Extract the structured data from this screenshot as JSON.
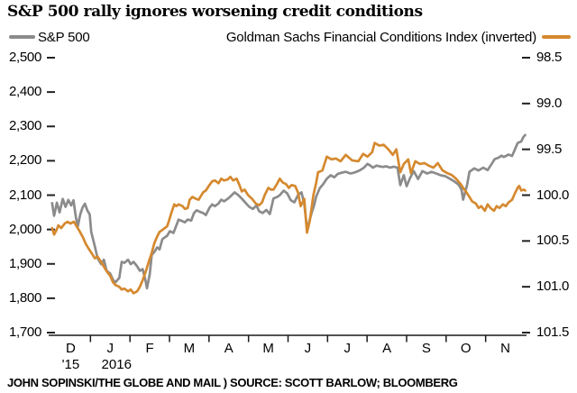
{
  "title": "S&P 500 rally ignores worsening credit conditions",
  "legend": {
    "sp500_label": "S&P 500",
    "gsfci_label": "Goldman Sachs Financial Conditions Index (inverted)"
  },
  "footer": "JOHN SOPINSKI/THE GLOBE AND MAIL ) SOURCE: SCOTT BARLOW; BLOOMBERG",
  "colors": {
    "sp500": "#8b8b8b",
    "gsfci": "#d5892f",
    "text": "#000000",
    "axis": "#1a1a1a"
  },
  "chart_data": {
    "type": "line",
    "title": "S&P 500 rally ignores worsening credit conditions",
    "grid": false,
    "legend_position": "top",
    "x_axis": {
      "unit": "months from Dec 1 2015",
      "month_labels": [
        "D",
        "J",
        "F",
        "M",
        "A",
        "M",
        "J",
        "J",
        "A",
        "S",
        "O",
        "N"
      ],
      "year_labels": [
        {
          "text": "'15",
          "month_index": 0
        },
        {
          "text": "2016",
          "month_index": 1
        }
      ]
    },
    "left_axis": {
      "series": "S&P 500",
      "tick_labels": [
        "2,500",
        "2,400",
        "2,300",
        "2,200",
        "2,100",
        "2,000",
        "1,900",
        "1,800",
        "1,700"
      ],
      "min": 1700,
      "max": 2500,
      "step": 100
    },
    "right_axis": {
      "series": "Goldman Sachs Financial Conditions Index",
      "tick_labels": [
        "98.5",
        "99.0",
        "99.5",
        "100.0",
        "100.5",
        "101.0",
        "101.5"
      ],
      "min": 98.5,
      "max": 101.5,
      "step": 0.5,
      "inverted": true
    },
    "series": [
      {
        "name": "S&P 500",
        "axis": "left",
        "color": "#8b8b8b",
        "points": [
          [
            0.03,
            2077
          ],
          [
            0.08,
            2040
          ],
          [
            0.15,
            2078
          ],
          [
            0.22,
            2050
          ],
          [
            0.3,
            2089
          ],
          [
            0.37,
            2066
          ],
          [
            0.44,
            2086
          ],
          [
            0.51,
            2070
          ],
          [
            0.57,
            2085
          ],
          [
            0.63,
            2037
          ],
          [
            0.68,
            2009
          ],
          [
            0.74,
            2043
          ],
          [
            0.8,
            2064
          ],
          [
            0.86,
            2075
          ],
          [
            0.92,
            2056
          ],
          [
            0.98,
            2044
          ],
          [
            1.02,
            1993
          ],
          [
            1.11,
            1951
          ],
          [
            1.18,
            1917
          ],
          [
            1.27,
            1899
          ],
          [
            1.34,
            1912
          ],
          [
            1.41,
            1880
          ],
          [
            1.5,
            1872
          ],
          [
            1.57,
            1854
          ],
          [
            1.63,
            1846
          ],
          [
            1.73,
            1859
          ],
          [
            1.79,
            1906
          ],
          [
            1.86,
            1903
          ],
          [
            1.95,
            1912
          ],
          [
            2.02,
            1899
          ],
          [
            2.09,
            1906
          ],
          [
            2.18,
            1893
          ],
          [
            2.25,
            1880
          ],
          [
            2.32,
            1885
          ],
          [
            2.39,
            1853
          ],
          [
            2.43,
            1829
          ],
          [
            2.5,
            1870
          ],
          [
            2.55,
            1926
          ],
          [
            2.62,
            1935
          ],
          [
            2.69,
            1948
          ],
          [
            2.75,
            1942
          ],
          [
            2.82,
            1972
          ],
          [
            2.94,
            1982
          ],
          [
            3.01,
            1995
          ],
          [
            3.1,
            1990
          ],
          [
            3.17,
            2011
          ],
          [
            3.23,
            2029
          ],
          [
            3.33,
            2024
          ],
          [
            3.39,
            2021
          ],
          [
            3.46,
            2029
          ],
          [
            3.55,
            2026
          ],
          [
            3.62,
            2048
          ],
          [
            3.69,
            2056
          ],
          [
            3.78,
            2051
          ],
          [
            3.85,
            2048
          ],
          [
            3.92,
            2042
          ],
          [
            4.01,
            2063
          ],
          [
            4.08,
            2073
          ],
          [
            4.15,
            2068
          ],
          [
            4.24,
            2076
          ],
          [
            4.31,
            2087
          ],
          [
            4.38,
            2082
          ],
          [
            4.47,
            2089
          ],
          [
            4.54,
            2096
          ],
          [
            4.65,
            2108
          ],
          [
            4.74,
            2100
          ],
          [
            4.83,
            2090
          ],
          [
            4.93,
            2077
          ],
          [
            5.02,
            2066
          ],
          [
            5.11,
            2060
          ],
          [
            5.2,
            2070
          ],
          [
            5.27,
            2053
          ],
          [
            5.36,
            2048
          ],
          [
            5.45,
            2057
          ],
          [
            5.54,
            2045
          ],
          [
            5.63,
            2090
          ],
          [
            5.73,
            2095
          ],
          [
            5.79,
            2100
          ],
          [
            5.89,
            2113
          ],
          [
            5.98,
            2105
          ],
          [
            6.07,
            2085
          ],
          [
            6.16,
            2079
          ],
          [
            6.25,
            2100
          ],
          [
            6.34,
            2108
          ],
          [
            6.41,
            2075
          ],
          [
            6.48,
            2001
          ],
          [
            6.53,
            2020
          ],
          [
            6.6,
            2050
          ],
          [
            6.66,
            2070
          ],
          [
            6.71,
            2095
          ],
          [
            6.8,
            2120
          ],
          [
            6.89,
            2132
          ],
          [
            6.98,
            2148
          ],
          [
            7.08,
            2158
          ],
          [
            7.17,
            2152
          ],
          [
            7.26,
            2162
          ],
          [
            7.35,
            2165
          ],
          [
            7.46,
            2168
          ],
          [
            7.58,
            2163
          ],
          [
            7.69,
            2166
          ],
          [
            7.81,
            2172
          ],
          [
            7.92,
            2180
          ],
          [
            8.01,
            2191
          ],
          [
            8.08,
            2186
          ],
          [
            8.15,
            2180
          ],
          [
            8.24,
            2186
          ],
          [
            8.31,
            2184
          ],
          [
            8.4,
            2182
          ],
          [
            8.49,
            2184
          ],
          [
            8.58,
            2180
          ],
          [
            8.67,
            2183
          ],
          [
            8.77,
            2180
          ],
          [
            8.84,
            2129
          ],
          [
            8.93,
            2158
          ],
          [
            9.0,
            2126
          ],
          [
            9.09,
            2150
          ],
          [
            9.18,
            2170
          ],
          [
            9.29,
            2147
          ],
          [
            9.4,
            2170
          ],
          [
            9.52,
            2163
          ],
          [
            9.63,
            2168
          ],
          [
            9.75,
            2163
          ],
          [
            9.86,
            2158
          ],
          [
            9.98,
            2155
          ],
          [
            10.09,
            2148
          ],
          [
            10.21,
            2140
          ],
          [
            10.32,
            2130
          ],
          [
            10.39,
            2116
          ],
          [
            10.43,
            2087
          ],
          [
            10.53,
            2130
          ],
          [
            10.59,
            2168
          ],
          [
            10.71,
            2178
          ],
          [
            10.82,
            2172
          ],
          [
            10.94,
            2180
          ],
          [
            11.05,
            2173
          ],
          [
            11.17,
            2194
          ],
          [
            11.23,
            2205
          ],
          [
            11.33,
            2209
          ],
          [
            11.4,
            2215
          ],
          [
            11.46,
            2211
          ],
          [
            11.58,
            2218
          ],
          [
            11.67,
            2214
          ],
          [
            11.74,
            2233
          ],
          [
            11.81,
            2252
          ],
          [
            11.9,
            2256
          ],
          [
            11.95,
            2268
          ],
          [
            12.0,
            2275
          ]
        ]
      },
      {
        "name": "Goldman Sachs Financial Conditions Index (inverted)",
        "axis": "right",
        "color": "#d5892f",
        "points": [
          [
            0.03,
            100.36
          ],
          [
            0.08,
            100.43
          ],
          [
            0.13,
            100.39
          ],
          [
            0.19,
            100.33
          ],
          [
            0.26,
            100.36
          ],
          [
            0.35,
            100.31
          ],
          [
            0.42,
            100.29
          ],
          [
            0.49,
            100.31
          ],
          [
            0.58,
            100.29
          ],
          [
            0.65,
            100.34
          ],
          [
            0.72,
            100.39
          ],
          [
            0.81,
            100.46
          ],
          [
            0.88,
            100.53
          ],
          [
            0.95,
            100.58
          ],
          [
            1.04,
            100.64
          ],
          [
            1.11,
            100.69
          ],
          [
            1.18,
            100.67
          ],
          [
            1.27,
            100.73
          ],
          [
            1.34,
            100.78
          ],
          [
            1.41,
            100.83
          ],
          [
            1.5,
            100.88
          ],
          [
            1.57,
            100.95
          ],
          [
            1.63,
            100.98
          ],
          [
            1.73,
            101.0
          ],
          [
            1.79,
            101.03
          ],
          [
            1.86,
            101.02
          ],
          [
            1.95,
            101.05
          ],
          [
            2.02,
            101.03
          ],
          [
            2.09,
            101.07
          ],
          [
            2.18,
            101.05
          ],
          [
            2.25,
            101.0
          ],
          [
            2.32,
            100.93
          ],
          [
            2.41,
            100.82
          ],
          [
            2.48,
            100.72
          ],
          [
            2.55,
            100.63
          ],
          [
            2.62,
            100.52
          ],
          [
            2.69,
            100.45
          ],
          [
            2.75,
            100.4
          ],
          [
            2.82,
            100.38
          ],
          [
            2.94,
            100.34
          ],
          [
            2.98,
            100.29
          ],
          [
            3.05,
            100.19
          ],
          [
            3.12,
            100.1
          ],
          [
            3.17,
            100.12
          ],
          [
            3.23,
            100.1
          ],
          [
            3.33,
            100.12
          ],
          [
            3.39,
            100.15
          ],
          [
            3.46,
            100.14
          ],
          [
            3.51,
            100.05
          ],
          [
            3.58,
            100.02
          ],
          [
            3.67,
            100.04
          ],
          [
            3.74,
            100.05
          ],
          [
            3.78,
            100.02
          ],
          [
            3.85,
            99.97
          ],
          [
            3.92,
            99.95
          ],
          [
            4.01,
            99.89
          ],
          [
            4.08,
            99.85
          ],
          [
            4.15,
            99.84
          ],
          [
            4.24,
            99.87
          ],
          [
            4.31,
            99.82
          ],
          [
            4.38,
            99.84
          ],
          [
            4.47,
            99.83
          ],
          [
            4.54,
            99.8
          ],
          [
            4.61,
            99.84
          ],
          [
            4.7,
            99.82
          ],
          [
            4.77,
            99.89
          ],
          [
            4.83,
            99.96
          ],
          [
            4.9,
            99.94
          ],
          [
            4.99,
            100.0
          ],
          [
            5.09,
            100.04
          ],
          [
            5.18,
            100.09
          ],
          [
            5.27,
            100.11
          ],
          [
            5.34,
            100.08
          ],
          [
            5.41,
            100.0
          ],
          [
            5.5,
            99.92
          ],
          [
            5.57,
            99.94
          ],
          [
            5.63,
            99.94
          ],
          [
            5.73,
            99.87
          ],
          [
            5.79,
            99.82
          ],
          [
            5.86,
            99.86
          ],
          [
            5.95,
            99.88
          ],
          [
            6.02,
            99.92
          ],
          [
            6.09,
            99.89
          ],
          [
            6.18,
            99.9
          ],
          [
            6.25,
            99.97
          ],
          [
            6.32,
            100.12
          ],
          [
            6.41,
            100.04
          ],
          [
            6.48,
            100.41
          ],
          [
            6.55,
            100.28
          ],
          [
            6.64,
            100.0
          ],
          [
            6.71,
            99.87
          ],
          [
            6.76,
            99.75
          ],
          [
            6.87,
            99.73
          ],
          [
            6.98,
            99.58
          ],
          [
            7.1,
            99.61
          ],
          [
            7.21,
            99.6
          ],
          [
            7.33,
            99.63
          ],
          [
            7.46,
            99.56
          ],
          [
            7.62,
            99.62
          ],
          [
            7.78,
            99.63
          ],
          [
            7.9,
            99.55
          ],
          [
            8.01,
            99.58
          ],
          [
            8.13,
            99.53
          ],
          [
            8.19,
            99.43
          ],
          [
            8.31,
            99.46
          ],
          [
            8.42,
            99.45
          ],
          [
            8.54,
            99.5
          ],
          [
            8.65,
            99.56
          ],
          [
            8.74,
            99.5
          ],
          [
            8.84,
            99.75
          ],
          [
            8.93,
            99.66
          ],
          [
            9.04,
            99.61
          ],
          [
            9.11,
            99.76
          ],
          [
            9.22,
            99.63
          ],
          [
            9.34,
            99.66
          ],
          [
            9.45,
            99.65
          ],
          [
            9.57,
            99.68
          ],
          [
            9.68,
            99.7
          ],
          [
            9.79,
            99.65
          ],
          [
            9.91,
            99.73
          ],
          [
            10.03,
            99.76
          ],
          [
            10.14,
            99.78
          ],
          [
            10.25,
            99.82
          ],
          [
            10.37,
            99.88
          ],
          [
            10.43,
            99.92
          ],
          [
            10.5,
            99.96
          ],
          [
            10.59,
            100.02
          ],
          [
            10.66,
            100.07
          ],
          [
            10.75,
            100.09
          ],
          [
            10.82,
            100.14
          ],
          [
            10.89,
            100.12
          ],
          [
            10.98,
            100.17
          ],
          [
            11.05,
            100.1
          ],
          [
            11.12,
            100.14
          ],
          [
            11.21,
            100.17
          ],
          [
            11.28,
            100.12
          ],
          [
            11.35,
            100.14
          ],
          [
            11.44,
            100.1
          ],
          [
            11.51,
            100.12
          ],
          [
            11.58,
            100.08
          ],
          [
            11.67,
            100.05
          ],
          [
            11.74,
            99.98
          ],
          [
            11.81,
            99.92
          ],
          [
            11.85,
            99.9
          ],
          [
            11.9,
            99.95
          ],
          [
            11.97,
            99.94
          ],
          [
            12.0,
            99.95
          ]
        ]
      }
    ]
  }
}
